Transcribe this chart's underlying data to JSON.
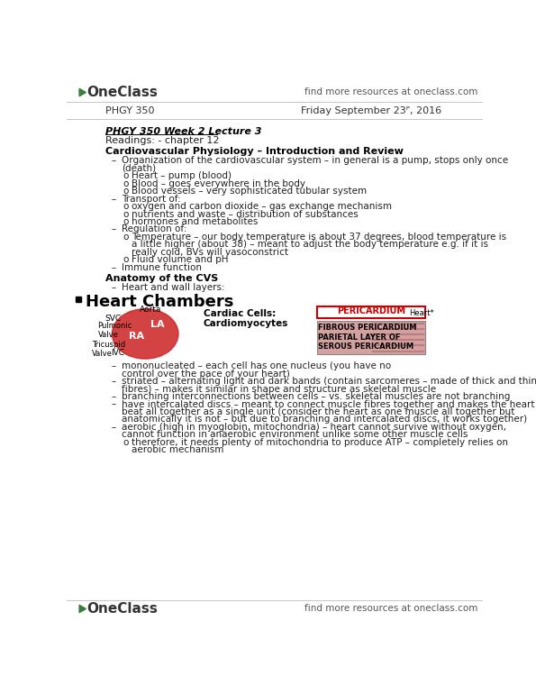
{
  "bg_color": "#ffffff",
  "header_text_right": "find more resources at oneclass.com",
  "subheader_left": "PHGY 350",
  "subheader_right": "Friday September 23ᴾ, 2016",
  "section1_title": "PHGY 350 Week 2 Lecture 3",
  "section1_sub": "Readings: - chapter 12",
  "section2_title": "Cardiovascular Physiology – Introduction and Review",
  "section2_bullets": [
    {
      "level": 1,
      "text": "Organization of the cardiovascular system – in general is a pump, stops only once"
    },
    {
      "level": 1,
      "text": "(death)",
      "indent_only": true
    },
    {
      "level": 2,
      "text": "Heart – pump (blood)"
    },
    {
      "level": 2,
      "text": "Blood – goes everywhere in the body"
    },
    {
      "level": 2,
      "text": "Blood vessels – very sophisticated tubular system"
    },
    {
      "level": 1,
      "text": "Transport of:"
    },
    {
      "level": 2,
      "text": "oxygen and carbon dioxide – gas exchange mechanism"
    },
    {
      "level": 2,
      "text": "nutrients and waste – distribution of substances"
    },
    {
      "level": 2,
      "text": "hormones and metabolites"
    },
    {
      "level": 1,
      "text": "Regulation of:"
    },
    {
      "level": 2,
      "text": "Temperature – our body temperature is about 37 degrees, blood temperature is"
    },
    {
      "level": 2,
      "text": "a little higher (about 38) – meant to adjust the body temperature e.g. if it is",
      "indent_only": true
    },
    {
      "level": 2,
      "text": "really cold, BVs will vasoconstrict",
      "indent_only": true
    },
    {
      "level": 2,
      "text": "Fluid volume and pH"
    },
    {
      "level": 1,
      "text": "Immune function"
    }
  ],
  "section3_title": "Anatomy of the CVS",
  "section3_bullets": [
    {
      "level": 1,
      "text": "Heart and wall layers:"
    }
  ],
  "section4_title": "Heart Chambers",
  "heart_labels": {
    "aorta": "Aorta",
    "svc": "SVC",
    "la": "LA",
    "ra": "RA",
    "ivc": "IVC",
    "pulmonic": "Pulmonic\nValve",
    "tricuspid": "Tricuspid\nValve",
    "cardiac_cells": "Cardiac Cells:\nCardiomyocytes"
  },
  "pericardium_box_label": "PERICARDIUM",
  "pericardium_box_color": "#cc0000",
  "pericardium_labels": [
    "FIBROUS PERICARDIUM",
    "PARIETAL LAYER OF\nSEROUS PERICARDIUM"
  ],
  "section5_bullets": [
    {
      "level": 1,
      "text": "mononucleated – each cell has one nucleus (you have no"
    },
    {
      "level": 1,
      "text": "control over the pace of your heart)",
      "indent_only": true
    },
    {
      "level": 1,
      "text": "striated – alternating light and dark bands (contain sarcomeres – made of thick and thin"
    },
    {
      "level": 1,
      "text": "fibres) – makes it similar in shape and structure as skeletal muscle",
      "indent_only": true
    },
    {
      "level": 1,
      "text": "branching interconnections between cells – vs. skeletal muscles are not branching"
    },
    {
      "level": 1,
      "text": "have intercalated discs – meant to connect muscle fibres together and makes the heart"
    },
    {
      "level": 1,
      "text": "beat all together as a single unit (consider the heart as one muscle all together but",
      "indent_only": true
    },
    {
      "level": 1,
      "text": "anatomically it is not – but due to branching and intercalated discs, it works together)",
      "indent_only": true
    },
    {
      "level": 1,
      "text": "aerobic (high in myoglobin, mitochondria) – heart cannot survive without oxygen,"
    },
    {
      "level": 1,
      "text": "cannot function in anaerobic environment unlike some other muscle cells",
      "indent_only": true
    },
    {
      "level": 2,
      "text": "therefore, it needs plenty of mitochondria to produce ATP – completely relies on"
    },
    {
      "level": 2,
      "text": "aerobic mechanism",
      "indent_only": true
    }
  ],
  "footer_text_left": "OneClass",
  "footer_text_right": "find more resources at oneclass.com",
  "oneclass_green": "#3a7d3a",
  "text_color": "#222222"
}
